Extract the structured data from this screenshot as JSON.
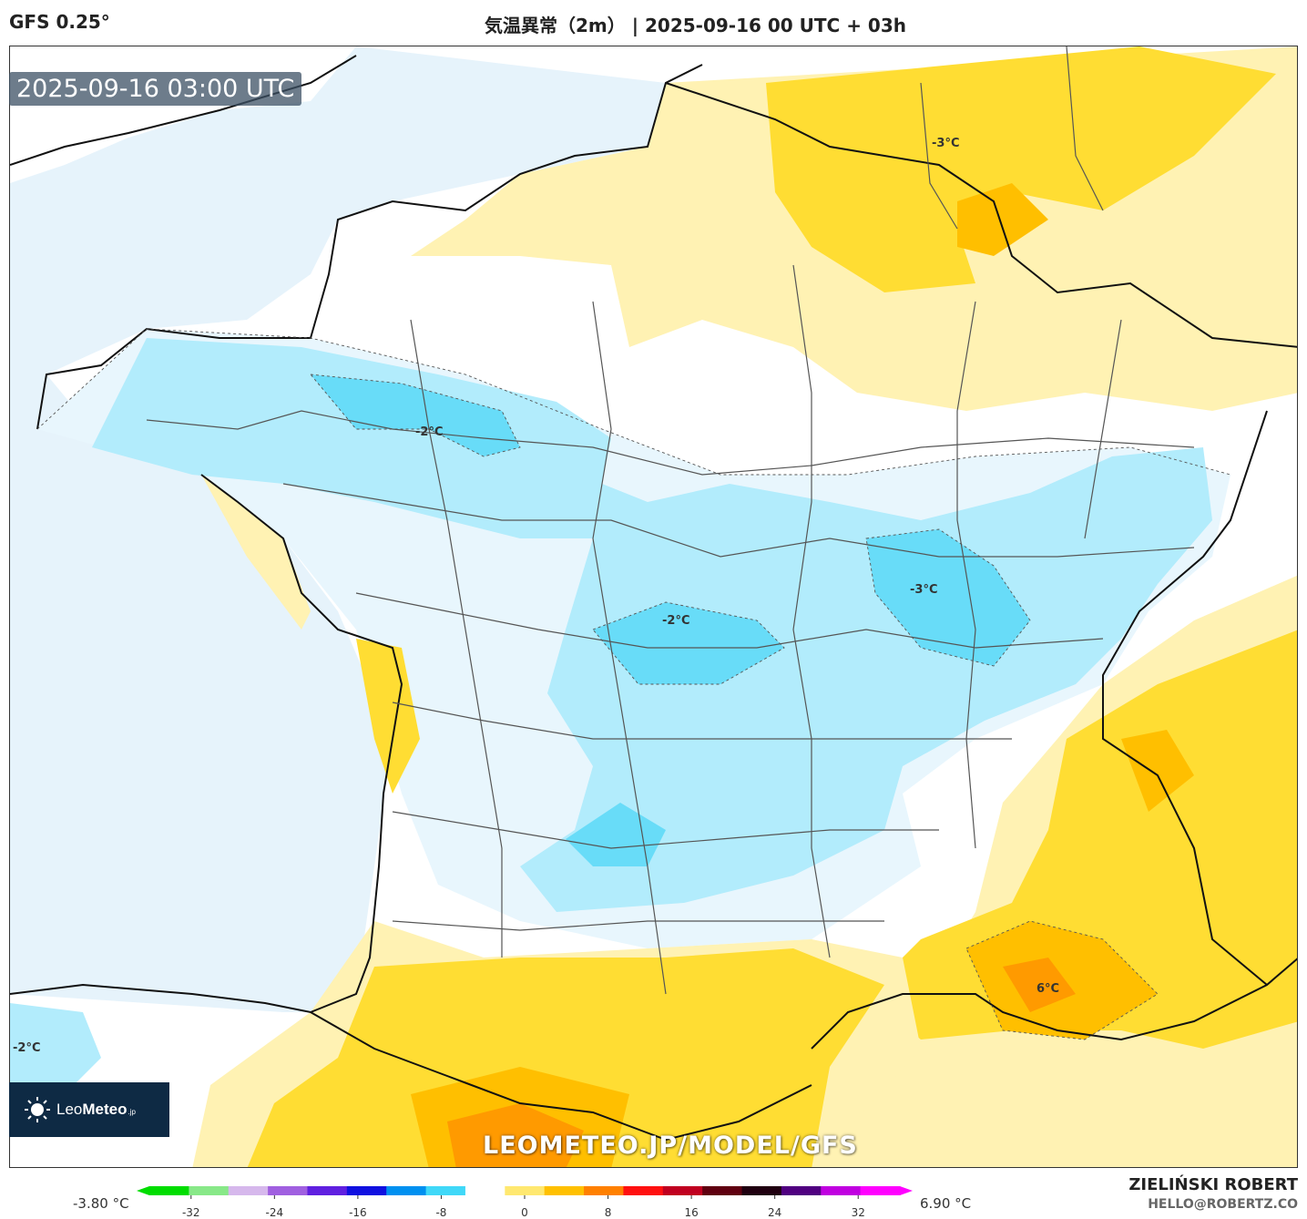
{
  "header": {
    "model": "GFS 0.25°",
    "title": "気温異常（2m） | 2025-09-16 00 UTC + 03h"
  },
  "map": {
    "timestamp": "2025-09-16 03:00 UTC",
    "watermark": "LEOMETEO.JP/MODEL/GFS",
    "contour_labels": [
      "-3°C",
      "-2°C",
      "-3°C",
      "-2°C",
      "6°C",
      "-2°C"
    ],
    "colors": {
      "sea": "#e6f3fb",
      "neutral": "#ffffff",
      "cool1": "#e8f6fd",
      "cool2": "#b2ecfc",
      "cool3": "#68dcf8",
      "warm1": "#fff2b3",
      "warm2": "#ffdd33",
      "warm3": "#ffbf00",
      "warm4": "#ff9a00"
    }
  },
  "logo": {
    "brand_light": "Leo",
    "brand_bold": "Meteo",
    "suffix": ".jp",
    "icon": "sun-icon"
  },
  "colorbar": {
    "min_label": "-3.80 °C",
    "max_label": "6.90 °C",
    "ticks": [
      "-32",
      "-24",
      "-16",
      "-8",
      "0",
      "8",
      "16",
      "24",
      "32"
    ],
    "tick_values": [
      -32,
      -24,
      -16,
      -8,
      0,
      8,
      16,
      24,
      32
    ],
    "range": [
      -36,
      36
    ],
    "stops": [
      "#00dd00",
      "#88e888",
      "#d6b8ec",
      "#a060e0",
      "#6020e0",
      "#1010e0",
      "#0090f0",
      "#40d8f8",
      "#ffffff",
      "#ffe870",
      "#ffc000",
      "#ff8000",
      "#ff1010",
      "#c00020",
      "#600010",
      "#200010",
      "#500080",
      "#c000e0",
      "#ff00ff"
    ]
  },
  "credits": {
    "author": "ZIELIŃSKI ROBERT",
    "email": "HELLO@ROBERTZ.CO"
  }
}
